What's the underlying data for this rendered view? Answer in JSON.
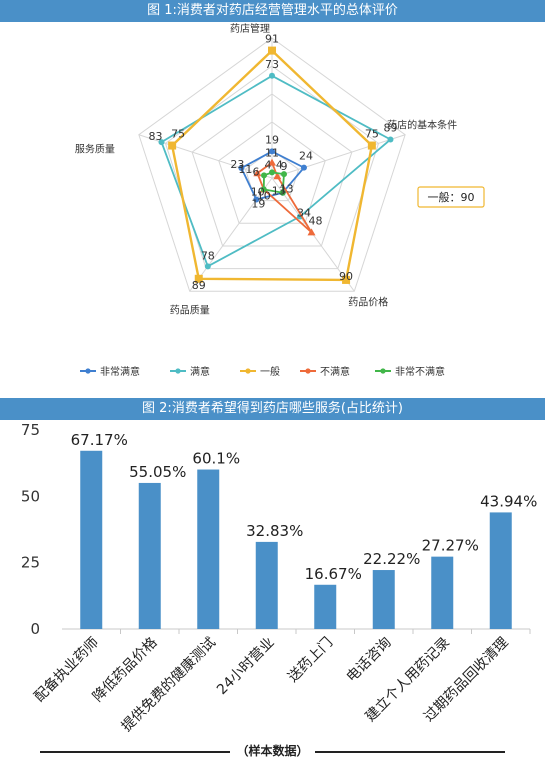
{
  "figure1": {
    "title": "图 1:消费者对药店经营管理水平的总体评价",
    "tooltip": "一般：90"
  },
  "figure2": {
    "title": "图 2:消费者希望得到药店哪些服务(占比统计)"
  },
  "footer": {
    "note": "（样本数据）"
  },
  "colors": {
    "banner": "#4a90c8",
    "非常满意": "#3f7fd0",
    "满意": "#4fbcc4",
    "一般": "#f0b731",
    "不满意": "#ee6a3a",
    "非常不满意": "#41b649",
    "bar": "#4a90c8"
  },
  "chart_data": [
    {
      "type": "radar",
      "axes": [
        "药店管理",
        "药店的基本条件",
        "药品价格",
        "药品质量",
        "服务质量"
      ],
      "series": [
        {
          "name": "非常满意",
          "values": [
            19,
            24,
            13,
            19,
            23
          ]
        },
        {
          "name": "满意",
          "values": [
            73,
            89,
            34,
            78,
            83
          ]
        },
        {
          "name": "一般",
          "values": [
            91,
            75,
            90,
            89,
            75
          ]
        },
        {
          "name": "不满意",
          "values": [
            11,
            4,
            48,
            10,
            11
          ]
        },
        {
          "name": "非常不满意",
          "values": [
            4,
            9,
            13,
            10,
            6
          ]
        }
      ],
      "range": [
        0,
        100
      ],
      "legend": "bottom"
    },
    {
      "type": "bar",
      "categories": [
        "配备执业药师",
        "降低药品价格",
        "提供免费的健康测试",
        "24小时营业",
        "送药上门",
        "电话咨询",
        "建立个人用药记录",
        "过期药品回收清理"
      ],
      "values": [
        67.17,
        55.05,
        60.1,
        32.83,
        16.67,
        22.22,
        27.27,
        43.94
      ],
      "value_labels": [
        "67.17%",
        "55.05%",
        "60.1%",
        "32.83%",
        "16.67%",
        "22.22%",
        "27.27%",
        "43.94%"
      ],
      "yticks": [
        "0",
        "25",
        "50",
        "75"
      ],
      "ylim": [
        0,
        75
      ],
      "grid": false,
      "legend": "none"
    }
  ]
}
